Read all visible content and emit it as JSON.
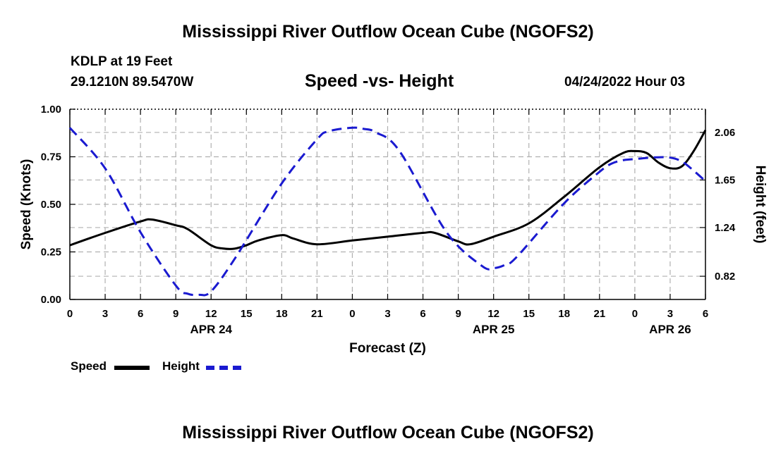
{
  "page_title": "Mississippi River Outflow Ocean Cube (NGOFS2)",
  "footer_title": "Mississippi River Outflow Ocean Cube (NGOFS2)",
  "station": {
    "name": "KDLP at 19 Feet",
    "coords": "29.1210N  89.5470W"
  },
  "timestamp": "04/24/2022 Hour 03",
  "colors": {
    "speed": "#000000",
    "height": "#1a1ad0",
    "grid": "#b0b0b0"
  },
  "legend": {
    "speed_label": "Speed",
    "height_label": "Height"
  },
  "chart_data": {
    "type": "line",
    "title": "Speed -vs- Height",
    "xlabel": "Forecast (Z)",
    "ylabel": "Speed (Knots)",
    "y2label": "Height (feet)",
    "x_range_hours": [
      0,
      54
    ],
    "ylim": [
      0,
      1
    ],
    "y2lim": [
      0.62,
      2.26
    ],
    "x_tick_hours": [
      0,
      3,
      6,
      9,
      12,
      15,
      18,
      21,
      24,
      27,
      30,
      33,
      36,
      39,
      42,
      45,
      48,
      51,
      54
    ],
    "x_tick_labels": [
      "0",
      "3",
      "6",
      "9",
      "12",
      "15",
      "18",
      "21",
      "0",
      "3",
      "6",
      "9",
      "12",
      "15",
      "18",
      "21",
      "0",
      "3",
      "6"
    ],
    "date_labels": [
      {
        "hour": 12,
        "label": "APR 24"
      },
      {
        "hour": 36,
        "label": "APR 25"
      },
      {
        "hour": 51,
        "label": "APR 26"
      }
    ],
    "y_ticks": [
      0.0,
      0.25,
      0.5,
      0.75,
      1.0
    ],
    "y_tick_labels": [
      "0.00",
      "0.25",
      "0.50",
      "0.75",
      "1.00"
    ],
    "y2_ticks": [
      0.82,
      1.24,
      1.65,
      2.06
    ],
    "y2_tick_labels": [
      "0.82",
      "1.24",
      "1.65",
      "2.06"
    ],
    "series": [
      {
        "name": "Speed",
        "axis": "left",
        "style": "solid",
        "x": [
          0,
          3,
          6,
          7,
          9,
          10,
          12,
          13,
          14,
          15,
          16,
          18,
          19,
          21,
          24,
          27,
          30,
          31,
          33,
          34,
          36,
          39,
          42,
          45,
          47,
          48,
          49,
          50,
          51,
          52,
          53,
          54
        ],
        "y": [
          0.285,
          0.35,
          0.41,
          0.42,
          0.39,
          0.37,
          0.285,
          0.268,
          0.267,
          0.285,
          0.31,
          0.338,
          0.32,
          0.29,
          0.31,
          0.33,
          0.35,
          0.35,
          0.305,
          0.29,
          0.33,
          0.4,
          0.54,
          0.695,
          0.77,
          0.78,
          0.77,
          0.72,
          0.69,
          0.7,
          0.78,
          0.89
        ]
      },
      {
        "name": "Height",
        "axis": "right",
        "style": "dashed",
        "x": [
          0,
          3,
          6,
          9,
          10,
          11,
          12,
          14,
          18,
          21,
          22,
          24,
          25,
          26,
          28,
          32,
          35,
          36,
          37,
          38,
          42,
          45,
          46,
          47,
          48,
          49,
          50,
          51,
          52,
          53,
          54
        ],
        "y": [
          2.1,
          1.75,
          1.2,
          0.74,
          0.67,
          0.66,
          0.69,
          0.97,
          1.62,
          2.0,
          2.07,
          2.1,
          2.09,
          2.06,
          1.9,
          1.2,
          0.91,
          0.89,
          0.92,
          0.99,
          1.45,
          1.72,
          1.79,
          1.82,
          1.83,
          1.84,
          1.846,
          1.843,
          1.81,
          1.73,
          1.64
        ]
      }
    ]
  }
}
